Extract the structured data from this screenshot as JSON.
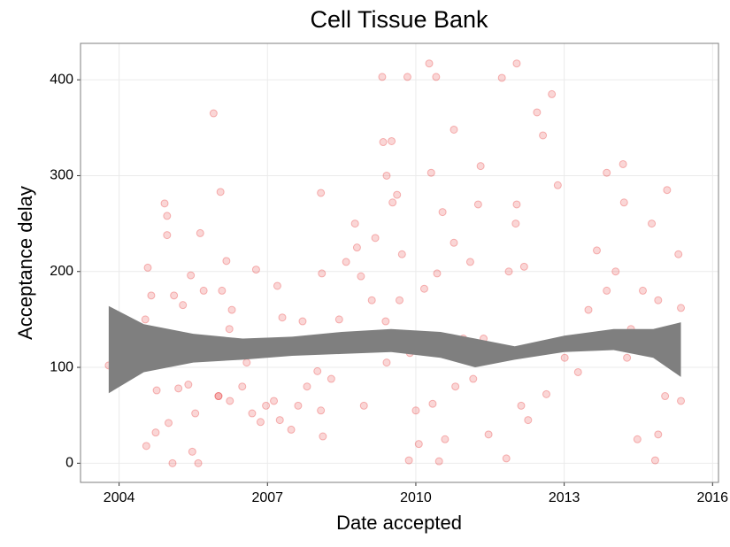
{
  "chart_data": {
    "type": "scatter",
    "title": "Cell Tissue Bank",
    "xlabel": "Date accepted",
    "ylabel": "Acceptance delay",
    "color": "#e41a1c",
    "grid": true,
    "xlim": [
      2003.22,
      2016.12
    ],
    "ylim": [
      -20,
      438
    ],
    "xticks": [
      2004,
      2007,
      2010,
      2013,
      2016
    ],
    "yticks": [
      0,
      100,
      200,
      300,
      400
    ],
    "x": [
      2003.79,
      2004.53,
      2004.58,
      2004.55,
      2004.65,
      2004.74,
      2004.76,
      2004.85,
      2004.92,
      2004.97,
      2004.97,
      2005.0,
      2005.08,
      2005.11,
      2005.2,
      2005.29,
      2005.4,
      2005.45,
      2005.48,
      2005.54,
      2005.6,
      2005.64,
      2005.71,
      2005.75,
      2005.91,
      2006.01,
      2006.05,
      2006.08,
      2006.17,
      2006.23,
      2006.28,
      2006.24,
      2006.39,
      2006.49,
      2006.58,
      2006.69,
      2006.77,
      2006.86,
      2006.97,
      2007.13,
      2007.2,
      2007.25,
      2007.3,
      2007.48,
      2007.62,
      2007.71,
      2007.8,
      2008.01,
      2008.08,
      2008.1,
      2008.08,
      2008.12,
      2008.29,
      2008.45,
      2008.59,
      2008.77,
      2008.81,
      2008.89,
      2008.95,
      2009.11,
      2009.18,
      2009.32,
      2009.34,
      2009.39,
      2009.41,
      2009.41,
      2009.53,
      2009.51,
      2009.62,
      2009.67,
      2009.72,
      2009.83,
      2009.88,
      2009.86,
      2010.0,
      2010.06,
      2010.17,
      2010.27,
      2010.31,
      2010.34,
      2010.41,
      2010.43,
      2010.47,
      2010.54,
      2010.59,
      2010.77,
      2010.77,
      2010.8,
      2010.96,
      2011.1,
      2011.16,
      2011.26,
      2011.31,
      2011.37,
      2011.47,
      2011.74,
      2011.83,
      2011.88,
      2012.02,
      2012.04,
      2012.04,
      2012.13,
      2012.19,
      2012.27,
      2012.45,
      2012.57,
      2012.64,
      2012.75,
      2012.87,
      2013.01,
      2013.19,
      2013.28,
      2013.49,
      2013.66,
      2013.86,
      2013.86,
      2014.04,
      2014.19,
      2014.21,
      2014.27,
      2014.35,
      2014.48,
      2014.59,
      2014.77,
      2014.9,
      2015.08,
      2014.9,
      2015.25,
      2015.31,
      2015.36,
      2015.36,
      2015.27,
      2015.04,
      2014.84,
      2006.01
    ],
    "values": [
      102,
      150,
      204,
      18,
      175,
      32,
      76,
      108,
      271,
      258,
      238,
      42,
      0,
      175,
      78,
      165,
      82,
      196,
      12,
      52,
      0,
      240,
      180,
      125,
      365,
      70,
      283,
      180,
      211,
      140,
      160,
      65,
      122,
      80,
      105,
      52,
      202,
      43,
      60,
      65,
      185,
      45,
      152,
      35,
      60,
      148,
      80,
      96,
      55,
      198,
      282,
      28,
      88,
      150,
      210,
      250,
      225,
      195,
      60,
      170,
      235,
      403,
      335,
      148,
      105,
      300,
      272,
      336,
      280,
      170,
      218,
      403,
      115,
      3,
      55,
      20,
      182,
      417,
      303,
      62,
      403,
      198,
      2,
      262,
      25,
      348,
      230,
      80,
      130,
      210,
      88,
      270,
      310,
      130,
      30,
      402,
      5,
      200,
      250,
      417,
      270,
      60,
      205,
      45,
      366,
      342,
      72,
      385,
      290,
      110,
      130,
      95,
      160,
      222,
      303,
      180,
      200,
      312,
      272,
      110,
      140,
      25,
      180,
      250,
      170,
      285,
      30,
      128,
      218,
      162,
      65,
      105,
      70,
      3,
      70
    ],
    "band": {
      "x": [
        2003.79,
        2004.5,
        2005.5,
        2006.5,
        2007.5,
        2008.5,
        2009.5,
        2010.5,
        2011.2,
        2012.0,
        2013.0,
        2014.0,
        2014.8,
        2015.36
      ],
      "lower": [
        73,
        95,
        105,
        108,
        112,
        114,
        116,
        110,
        100,
        108,
        116,
        118,
        110,
        90
      ],
      "upper": [
        164,
        145,
        135,
        130,
        132,
        137,
        140,
        137,
        130,
        122,
        133,
        140,
        140,
        147
      ],
      "color": "#7f7f7f"
    }
  }
}
